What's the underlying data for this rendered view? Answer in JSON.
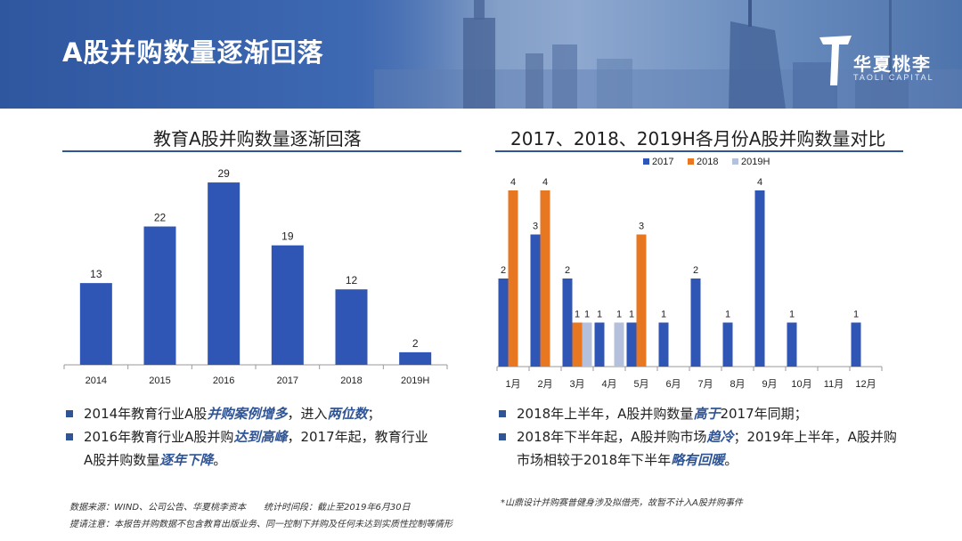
{
  "header": {
    "title": "A股并购数量逐渐回落",
    "logo_zh": "华夏桃李",
    "logo_en": "TAOLI CAPITAL"
  },
  "left_panel": {
    "title": "教育A股并购数量逐渐回落",
    "bullets": [
      {
        "parts": [
          {
            "text": "2014年教育行业A股",
            "hl": false
          },
          {
            "text": "并购案例增多",
            "hl": true
          },
          {
            "text": "，进入",
            "hl": false
          },
          {
            "text": "两位数",
            "hl": true
          },
          {
            "text": "；",
            "hl": false
          }
        ]
      },
      {
        "parts": [
          {
            "text": "2016年教育行业A股并购",
            "hl": false
          },
          {
            "text": "达到高峰",
            "hl": true
          },
          {
            "text": "，2017年起，教育行业",
            "hl": false
          }
        ]
      },
      {
        "parts": [
          {
            "text": "A股并购数量",
            "hl": false
          },
          {
            "text": "逐年下降",
            "hl": true
          },
          {
            "text": "。",
            "hl": false
          }
        ],
        "continuation": true
      }
    ],
    "source": "数据来源：WIND、公司公告、华夏桃李资本　　统计时间段：截止至2019年6月30日",
    "note": "提请注意：本报告并购数据不包含教育出版业务、同一控制下并购及任何未达到实质性控制等情形"
  },
  "right_panel": {
    "title": "2017、2018、2019H各月份A股并购数量对比",
    "bullets": [
      {
        "parts": [
          {
            "text": "2018年上半年，A股并购数量",
            "hl": false
          },
          {
            "text": "高于",
            "hl": true
          },
          {
            "text": "2017年同期；",
            "hl": false
          }
        ]
      },
      {
        "parts": [
          {
            "text": "2018年下半年起，A股并购市场",
            "hl": false
          },
          {
            "text": "趋冷",
            "hl": true
          },
          {
            "text": "；2019年上半年，A股并购",
            "hl": false
          }
        ]
      },
      {
        "parts": [
          {
            "text": "市场相较于2018年下半年",
            "hl": false
          },
          {
            "text": "略有回暖",
            "hl": true
          },
          {
            "text": "。",
            "hl": false
          }
        ],
        "continuation": true
      }
    ],
    "footnote": "*山鼎设计并购赛普健身涉及拟借壳，故暂不计入A股并购事件"
  },
  "colors": {
    "primary": "#2f5597",
    "bar_2017": "#2f55b5",
    "bar_2018": "#e87722",
    "bar_2019H": "#b4c0dc"
  },
  "chart_data": [
    {
      "type": "bar",
      "title": "教育A股并购数量逐渐回落",
      "categories": [
        "2014",
        "2015",
        "2016",
        "2017",
        "2018",
        "2019H"
      ],
      "values": [
        13,
        22,
        29,
        19,
        12,
        2
      ],
      "ylim": [
        0,
        30
      ]
    },
    {
      "type": "bar",
      "title": "2017、2018、2019H各月份A股并购数量对比",
      "categories": [
        "1月",
        "2月",
        "3月",
        "4月",
        "5月",
        "6月",
        "7月",
        "8月",
        "9月",
        "10月",
        "11月",
        "12月"
      ],
      "series": [
        {
          "name": "2017",
          "values": [
            2,
            3,
            2,
            1,
            1,
            1,
            2,
            1,
            4,
            1,
            0,
            1
          ]
        },
        {
          "name": "2018",
          "values": [
            4,
            4,
            1,
            0,
            3,
            0,
            0,
            0,
            0,
            0,
            0,
            0
          ]
        },
        {
          "name": "2019H",
          "values": [
            0,
            0,
            1,
            1,
            0,
            0,
            0,
            0,
            0,
            0,
            0,
            0
          ]
        }
      ],
      "legend": "top-center",
      "ylim": [
        0,
        4.4
      ]
    }
  ]
}
